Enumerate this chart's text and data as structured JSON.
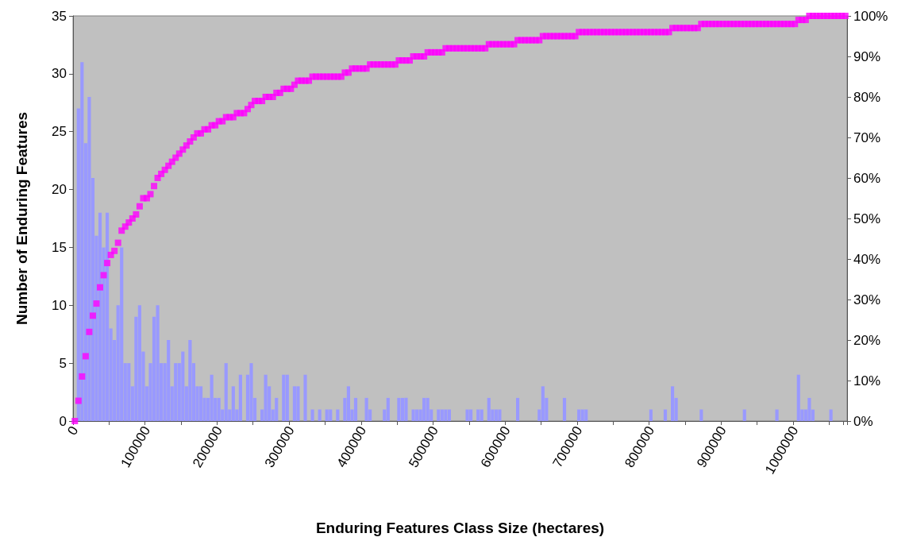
{
  "chart_data": {
    "type": "bar",
    "xlabel": "Enduring Features Class Size (hectares)",
    "ylabel": "Number of Enduring Features",
    "categories": [
      "0",
      null,
      null,
      null,
      null,
      null,
      null,
      null,
      null,
      null,
      null,
      null,
      null,
      null,
      null,
      null,
      null,
      null,
      null,
      null,
      "100000",
      null,
      null,
      null,
      null,
      null,
      null,
      null,
      null,
      null,
      null,
      null,
      null,
      null,
      null,
      null,
      null,
      null,
      null,
      null,
      "200000",
      null,
      null,
      null,
      null,
      null,
      null,
      null,
      null,
      null,
      null,
      null,
      null,
      null,
      null,
      null,
      null,
      null,
      null,
      null,
      "300000",
      null,
      null,
      null,
      null,
      null,
      null,
      null,
      null,
      null,
      null,
      null,
      null,
      null,
      null,
      null,
      null,
      null,
      null,
      null,
      "400000",
      null,
      null,
      null,
      null,
      null,
      null,
      null,
      null,
      null,
      null,
      null,
      null,
      null,
      null,
      null,
      null,
      null,
      null,
      null,
      "500000",
      null,
      null,
      null,
      null,
      null,
      null,
      null,
      null,
      null,
      null,
      null,
      null,
      null,
      null,
      null,
      null,
      null,
      null,
      null,
      "600000",
      null,
      null,
      null,
      null,
      null,
      null,
      null,
      null,
      null,
      null,
      null,
      null,
      null,
      null,
      null,
      null,
      null,
      null,
      null,
      "700000",
      null,
      null,
      null,
      null,
      null,
      null,
      null,
      null,
      null,
      null,
      null,
      null,
      null,
      null,
      null,
      null,
      null,
      null,
      null,
      "800000",
      null,
      null,
      null,
      null,
      null,
      null,
      null,
      null,
      null,
      null,
      null,
      null,
      null,
      null,
      null,
      null,
      null,
      null,
      null,
      "900000",
      null,
      null,
      null,
      null,
      null,
      null,
      null,
      null,
      null,
      null,
      null,
      null,
      null,
      null,
      null,
      null,
      null,
      null,
      null,
      "1000000",
      null,
      null,
      null,
      null,
      null,
      null,
      null,
      null,
      null,
      null,
      null,
      null,
      null,
      null
    ],
    "series": [
      {
        "color": "#9999ff",
        "values": [
          0,
          27,
          31,
          24,
          28,
          21,
          16,
          18,
          15,
          18,
          8,
          7,
          10,
          15,
          5,
          5,
          3,
          9,
          10,
          6,
          3,
          5,
          9,
          10,
          5,
          5,
          7,
          3,
          5,
          5,
          6,
          3,
          7,
          5,
          3,
          3,
          2,
          2,
          4,
          2,
          2,
          1,
          5,
          1,
          3,
          1,
          4,
          0,
          4,
          5,
          2,
          0,
          1,
          4,
          3,
          1,
          2,
          0,
          4,
          4,
          0,
          3,
          3,
          0,
          4,
          0,
          1,
          0,
          1,
          0,
          1,
          1,
          0,
          1,
          0,
          2,
          3,
          1,
          2,
          0,
          0,
          2,
          1,
          0,
          0,
          0,
          1,
          2,
          0,
          0,
          2,
          2,
          2,
          0,
          1,
          1,
          1,
          2,
          2,
          1,
          0,
          1,
          1,
          1,
          1,
          0,
          0,
          0,
          0,
          1,
          1,
          0,
          1,
          1,
          0,
          2,
          1,
          1,
          1,
          0,
          0,
          0,
          0,
          2,
          0,
          0,
          0,
          0,
          0,
          1,
          3,
          2,
          0,
          0,
          0,
          0,
          2,
          0,
          0,
          0,
          1,
          1,
          1,
          0,
          0,
          0,
          0,
          0,
          0,
          0,
          0,
          0,
          0,
          0,
          0,
          0,
          0,
          0,
          0,
          0,
          1,
          0,
          0,
          0,
          1,
          0,
          3,
          2,
          0,
          0,
          0,
          0,
          0,
          0,
          1,
          0,
          0,
          0,
          0,
          0,
          0,
          0,
          0,
          0,
          0,
          0,
          1,
          0,
          0,
          0,
          0,
          0,
          0,
          0,
          0,
          1,
          0,
          0,
          0,
          0,
          0,
          4,
          1,
          1,
          2,
          1,
          0,
          0,
          0,
          0,
          1,
          0,
          0,
          0,
          0
        ]
      },
      {
        "type": "scatter",
        "axis": "y2",
        "color": "#ff00ff",
        "values": [
          0,
          5,
          11,
          16,
          22,
          26,
          29,
          33,
          36,
          39,
          41,
          42,
          44,
          47,
          48,
          49,
          50,
          51,
          53,
          55,
          55,
          56,
          58,
          60,
          61,
          62,
          63,
          64,
          65,
          66,
          67,
          68,
          69,
          70,
          71,
          71,
          72,
          72,
          73,
          73,
          74,
          74,
          75,
          75,
          75,
          76,
          76,
          76,
          77,
          78,
          79,
          79,
          79,
          80,
          80,
          80,
          81,
          81,
          82,
          82,
          82,
          83,
          84,
          84,
          84,
          84,
          85,
          85,
          85,
          85,
          85,
          85,
          85,
          85,
          85,
          86,
          86,
          87,
          87,
          87,
          87,
          87,
          88,
          88,
          88,
          88,
          88,
          88,
          88,
          88,
          89,
          89,
          89,
          89,
          90,
          90,
          90,
          90,
          91,
          91,
          91,
          91,
          91,
          92,
          92,
          92,
          92,
          92,
          92,
          92,
          92,
          92,
          92,
          92,
          92,
          93,
          93,
          93,
          93,
          93,
          93,
          93,
          93,
          94,
          94,
          94,
          94,
          94,
          94,
          94,
          95,
          95,
          95,
          95,
          95,
          95,
          95,
          95,
          95,
          95,
          96,
          96,
          96,
          96,
          96,
          96,
          96,
          96,
          96,
          96,
          96,
          96,
          96,
          96,
          96,
          96,
          96,
          96,
          96,
          96,
          96,
          96,
          96,
          96,
          96,
          96,
          97,
          97,
          97,
          97,
          97,
          97,
          97,
          97,
          98,
          98,
          98,
          98,
          98,
          98,
          98,
          98,
          98,
          98,
          98,
          98,
          98,
          98,
          98,
          98,
          98,
          98,
          98,
          98,
          98,
          98,
          98,
          98,
          98,
          98,
          98,
          99,
          99,
          99,
          100,
          100,
          100,
          100,
          100,
          100,
          100,
          100,
          100,
          100,
          100
        ]
      }
    ],
    "marker": "square",
    "ylim": [
      0,
      35
    ],
    "yticks": [
      0,
      5,
      10,
      15,
      20,
      25,
      30,
      35
    ],
    "y2lim": [
      0,
      100
    ],
    "y2ticks": [
      {
        "value": 0,
        "label": "0%"
      },
      {
        "value": 10,
        "label": "10%"
      },
      {
        "value": 20,
        "label": "20%"
      },
      {
        "value": 30,
        "label": "30%"
      },
      {
        "value": 40,
        "label": "40%"
      },
      {
        "value": 50,
        "label": "50%"
      },
      {
        "value": 60,
        "label": "60%"
      },
      {
        "value": 70,
        "label": "70%"
      },
      {
        "value": 80,
        "label": "80%"
      },
      {
        "value": 90,
        "label": "90%"
      },
      {
        "value": 100,
        "label": "100%"
      }
    ]
  }
}
